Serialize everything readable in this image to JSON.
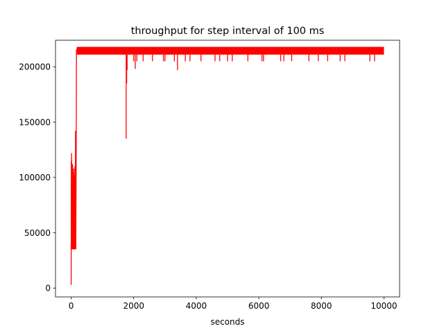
{
  "chart_data": {
    "type": "line",
    "title": "throughput for step interval of 100 ms",
    "xlabel": "seconds",
    "ylabel": "",
    "xlim": [
      -500,
      10500
    ],
    "ylim": [
      -8000,
      224000
    ],
    "grid": false,
    "legend": "none",
    "x_ticks": [
      0,
      2000,
      4000,
      6000,
      8000,
      10000
    ],
    "x_tick_labels": [
      "0",
      "2000",
      "4000",
      "6000",
      "8000",
      "10000"
    ],
    "y_ticks": [
      0,
      50000,
      100000,
      150000,
      200000
    ],
    "y_tick_labels": [
      "0",
      "50000",
      "100000",
      "150000",
      "200000"
    ],
    "series": [
      {
        "color": "#ff0000",
        "ramp_up": {
          "x": [
            0,
            5,
            10,
            15,
            20,
            25,
            30,
            35,
            40,
            45,
            50,
            60,
            70,
            80,
            90,
            100,
            110,
            120,
            130,
            140,
            150,
            160,
            170,
            180
          ],
          "y": [
            3000,
            115000,
            35000,
            122000,
            60000,
            110000,
            35000,
            100000,
            45000,
            112000,
            35000,
            105000,
            35000,
            108000,
            35000,
            102000,
            35000,
            110000,
            35000,
            142000,
            35000,
            105000,
            215000,
            216000
          ]
        },
        "steady_band": {
          "x_start": 180,
          "x_end": 10000,
          "y_min": 211000,
          "y_max": 218000
        },
        "dips": {
          "x": [
            1760,
            1775,
            1790,
            2000,
            2050,
            2100,
            2300,
            2600,
            2950,
            3000,
            3300,
            3400,
            3650,
            3800,
            4150,
            4600,
            4750,
            5000,
            5150,
            5650,
            6100,
            6150,
            6700,
            6800,
            7050,
            7600,
            7900,
            8200,
            8600,
            8750,
            9550,
            9700
          ],
          "y": [
            135000,
            185000,
            197000,
            205000,
            198000,
            205000,
            205000,
            205000,
            205000,
            205000,
            205000,
            197000,
            205000,
            205000,
            205000,
            205000,
            205000,
            205000,
            205000,
            205000,
            205000,
            205000,
            205000,
            205000,
            205000,
            205000,
            205000,
            205000,
            205000,
            205000,
            205000,
            205000
          ]
        }
      }
    ]
  }
}
